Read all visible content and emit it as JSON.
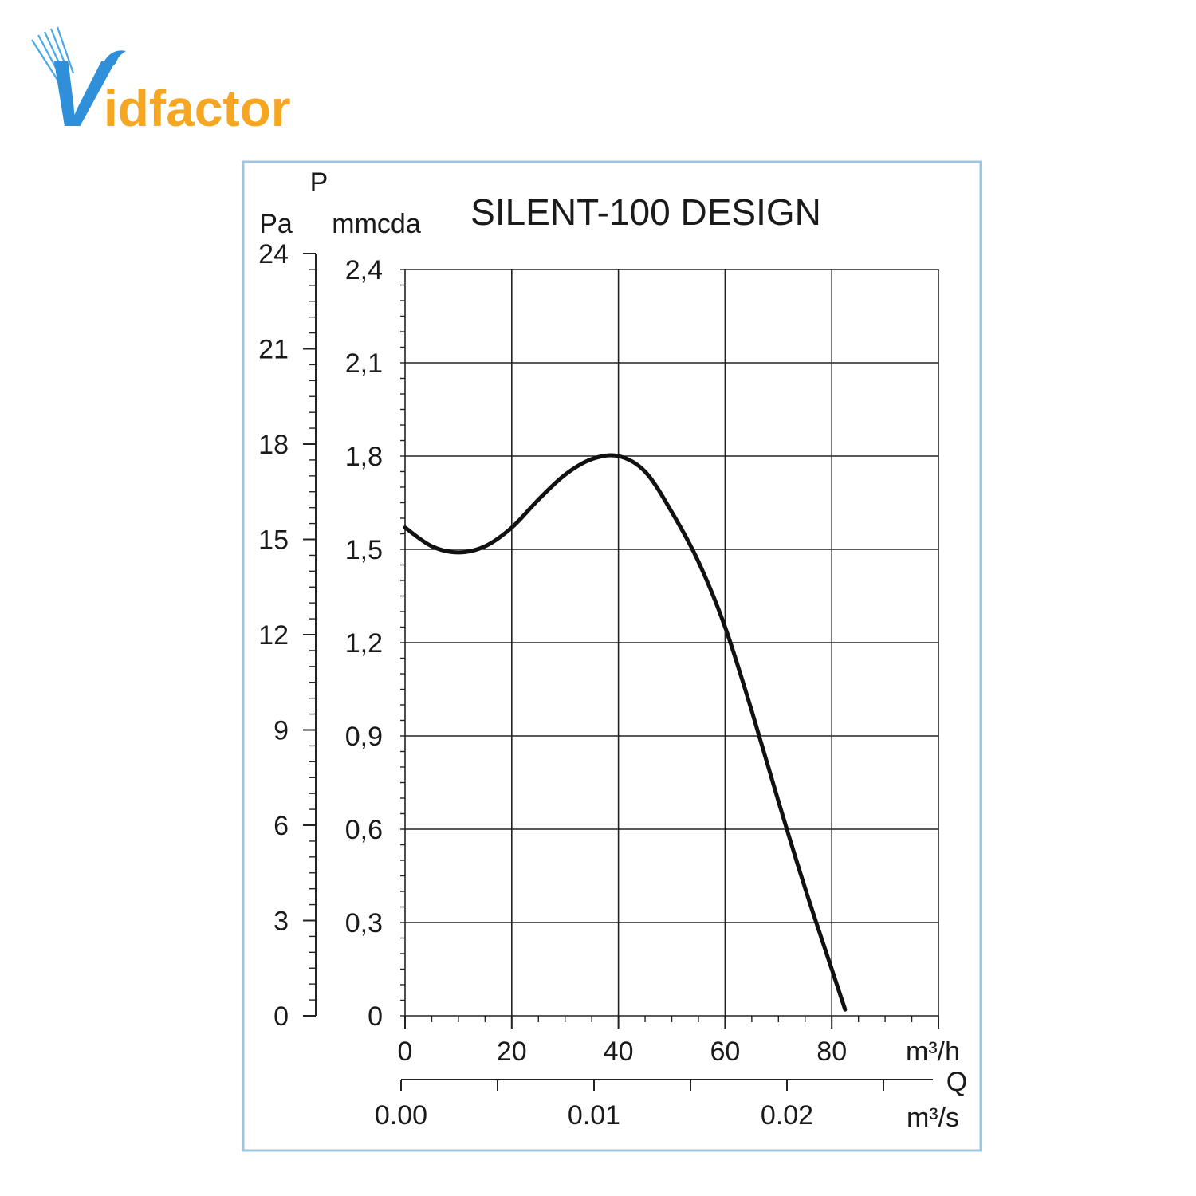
{
  "brand": {
    "logo_text_letter": "V",
    "logo_text_rest": "idfactor",
    "colors": {
      "blue": "#2f8fd8",
      "orange": "#f5a623"
    }
  },
  "chart_data": {
    "type": "line",
    "title": "SILENT-100 DESIGN",
    "y_axis_symbol": "P",
    "y_axis_left": {
      "unit": "Pa",
      "range": [
        0,
        24
      ],
      "ticks": [
        "0",
        "3",
        "6",
        "9",
        "12",
        "15",
        "18",
        "21",
        "24"
      ]
    },
    "y_axis_right": {
      "unit": "mmcda",
      "range": [
        0,
        2.4
      ],
      "ticks": [
        "0",
        "0,3",
        "0,6",
        "0,9",
        "1,2",
        "1,5",
        "1,8",
        "2,1",
        "2,4"
      ]
    },
    "x_axis": {
      "unit": "m³/h",
      "range": [
        0,
        100
      ],
      "ticks": [
        "0",
        "20",
        "40",
        "60",
        "80"
      ]
    },
    "x_axis_secondary": {
      "unit": "m³/s",
      "ticks": [
        "0.00",
        "0.01",
        "0.02"
      ]
    },
    "x_axis_symbol": "Q",
    "grid": true,
    "series": [
      {
        "x": [
          0,
          5,
          10,
          15,
          20,
          25,
          30,
          35,
          40,
          45,
          50,
          55,
          60,
          65,
          70,
          75,
          80,
          82.5
        ],
        "y": [
          1.57,
          1.51,
          1.49,
          1.51,
          1.57,
          1.66,
          1.74,
          1.79,
          1.8,
          1.75,
          1.62,
          1.46,
          1.25,
          0.98,
          0.69,
          0.41,
          0.15,
          0.02
        ]
      }
    ]
  }
}
